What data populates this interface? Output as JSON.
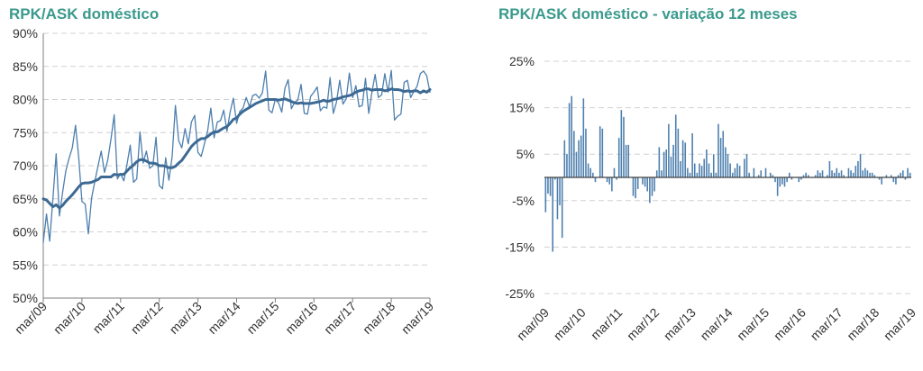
{
  "colors": {
    "title": "#3a9a8c",
    "series": "#4d7fae",
    "trend": "#3d6a94",
    "grid": "#d0d0d0",
    "axis": "#7f7f7f",
    "text": "#333333"
  },
  "chart_data": [
    {
      "type": "line",
      "title": "RPK/ASK doméstico",
      "ylim": [
        0.5,
        0.9
      ],
      "yticks": [
        0.5,
        0.55,
        0.6,
        0.65,
        0.7,
        0.75,
        0.8,
        0.85,
        0.9
      ],
      "ytick_labels": [
        "50%",
        "55%",
        "60%",
        "65%",
        "70%",
        "75%",
        "80%",
        "85%",
        "90%"
      ],
      "xticks": [
        "mar/09",
        "mar/10",
        "mar/11",
        "mar/12",
        "mar/13",
        "mar/14",
        "mar/15",
        "mar/16",
        "mar/17",
        "mar/18",
        "mar/19"
      ],
      "grid": true,
      "legend": "none",
      "series": [
        {
          "role": "monthly",
          "values": [
            0.584,
            0.627,
            0.586,
            0.65,
            0.718,
            0.624,
            0.66,
            0.692,
            0.711,
            0.727,
            0.761,
            0.713,
            0.646,
            0.642,
            0.597,
            0.651,
            0.676,
            0.7,
            0.722,
            0.69,
            0.708,
            0.74,
            0.777,
            0.68,
            0.688,
            0.677,
            0.702,
            0.731,
            0.675,
            0.68,
            0.751,
            0.704,
            0.722,
            0.696,
            0.7,
            0.743,
            0.67,
            0.665,
            0.712,
            0.678,
            0.714,
            0.791,
            0.738,
            0.727,
            0.756,
            0.733,
            0.766,
            0.776,
            0.72,
            0.714,
            0.733,
            0.752,
            0.787,
            0.742,
            0.766,
            0.768,
            0.784,
            0.752,
            0.781,
            0.802,
            0.764,
            0.782,
            0.787,
            0.803,
            0.789,
            0.806,
            0.808,
            0.802,
            0.81,
            0.843,
            0.784,
            0.78,
            0.8,
            0.795,
            0.781,
            0.817,
            0.83,
            0.786,
            0.796,
            0.799,
            0.823,
            0.779,
            0.778,
            0.805,
            0.811,
            0.819,
            0.783,
            0.789,
            0.787,
            0.833,
            0.779,
            0.796,
            0.829,
            0.793,
            0.801,
            0.84,
            0.803,
            0.821,
            0.789,
            0.791,
            0.832,
            0.779,
            0.811,
            0.838,
            0.803,
            0.807,
            0.839,
            0.811,
            0.844,
            0.769,
            0.775,
            0.778,
            0.826,
            0.829,
            0.803,
            0.812,
            0.82,
            0.839,
            0.843,
            0.836,
            0.811
          ],
          "x_start": "mar/09",
          "x_end": "mar/19"
        },
        {
          "role": "trend",
          "values": [
            0.65,
            0.648,
            0.643,
            0.638,
            0.641,
            0.636,
            0.64,
            0.646,
            0.651,
            0.656,
            0.662,
            0.668,
            0.673,
            0.674,
            0.674,
            0.675,
            0.677,
            0.679,
            0.683,
            0.683,
            0.683,
            0.683,
            0.687,
            0.686,
            0.687,
            0.687,
            0.692,
            0.697,
            0.701,
            0.706,
            0.709,
            0.709,
            0.707,
            0.704,
            0.704,
            0.703,
            0.7,
            0.7,
            0.699,
            0.697,
            0.697,
            0.699,
            0.704,
            0.708,
            0.715,
            0.722,
            0.729,
            0.734,
            0.738,
            0.741,
            0.741,
            0.744,
            0.748,
            0.751,
            0.751,
            0.754,
            0.757,
            0.759,
            0.764,
            0.77,
            0.772,
            0.778,
            0.782,
            0.785,
            0.788,
            0.791,
            0.794,
            0.796,
            0.798,
            0.8,
            0.8,
            0.8,
            0.8,
            0.799,
            0.8,
            0.801,
            0.799,
            0.797,
            0.795,
            0.794,
            0.795,
            0.794,
            0.794,
            0.794,
            0.795,
            0.796,
            0.797,
            0.799,
            0.797,
            0.798,
            0.8,
            0.801,
            0.802,
            0.804,
            0.805,
            0.806,
            0.808,
            0.811,
            0.813,
            0.814,
            0.816,
            0.816,
            0.814,
            0.815,
            0.815,
            0.815,
            0.813,
            0.814,
            0.816,
            0.815,
            0.815,
            0.814,
            0.812,
            0.813,
            0.812,
            0.813,
            0.813,
            0.81,
            0.813,
            0.811,
            0.815
          ],
          "x_start": "mar/09",
          "x_end": "mar/19"
        }
      ]
    },
    {
      "type": "bar",
      "title": "RPK/ASK doméstico - variação  12 meses",
      "ylim": [
        -0.25,
        0.25
      ],
      "yticks": [
        -0.25,
        -0.15,
        -0.05,
        0.05,
        0.15,
        0.25
      ],
      "ytick_labels": [
        "-25%",
        "-15%",
        "-5%",
        "5%",
        "15%",
        "25%"
      ],
      "xticks": [
        "mar/09",
        "mar/10",
        "mar/11",
        "mar/12",
        "mar/13",
        "mar/14",
        "mar/15",
        "mar/16",
        "mar/17",
        "mar/18",
        "mar/19"
      ],
      "grid": true,
      "legend": "none",
      "values": [
        -0.075,
        -0.035,
        -0.04,
        -0.16,
        -0.005,
        -0.09,
        -0.06,
        -0.13,
        0.08,
        0.05,
        0.16,
        0.175,
        0.1,
        0.055,
        0.08,
        0.09,
        0.17,
        0.105,
        0.03,
        0.02,
        0.01,
        -0.01,
        0.0,
        0.11,
        0.105,
        0.0,
        -0.01,
        -0.015,
        -0.03,
        0.02,
        -0.005,
        0.085,
        0.145,
        0.13,
        0.07,
        0.07,
        0.0,
        -0.04,
        -0.045,
        -0.025,
        0.0,
        -0.015,
        -0.02,
        -0.03,
        -0.055,
        -0.04,
        -0.03,
        0.015,
        0.065,
        0.015,
        0.055,
        0.06,
        0.115,
        0.045,
        0.07,
        0.135,
        0.105,
        0.035,
        0.08,
        0.075,
        0.02,
        0.01,
        0.095,
        0.03,
        0.01,
        0.03,
        0.025,
        0.04,
        0.06,
        0.03,
        0.01,
        0.05,
        0.01,
        0.115,
        0.085,
        0.1,
        0.065,
        0.05,
        0.03,
        0.01,
        0.02,
        0.03,
        0.025,
        0.0,
        0.04,
        0.05,
        0.01,
        0.0,
        0.02,
        0.0,
        0.005,
        0.015,
        0.0,
        0.02,
        0.0,
        0.01,
        0.005,
        -0.01,
        -0.04,
        -0.02,
        -0.015,
        -0.02,
        -0.01,
        0.01,
        -0.005,
        0.0,
        0.0,
        -0.01,
        -0.005,
        0.005,
        0.01,
        0.005,
        0.0,
        0.0,
        0.005,
        0.015,
        0.01,
        0.015,
        0.0,
        0.005,
        0.035,
        0.015,
        0.01,
        0.02,
        0.01,
        0.015,
        0.005,
        0.0,
        0.02,
        0.015,
        0.01,
        0.025,
        0.035,
        0.05,
        0.015,
        0.02,
        0.015,
        0.01,
        0.01,
        0.005,
        0.0,
        -0.005,
        -0.015,
        0.0,
        0.005,
        0.0,
        0.005,
        -0.01,
        -0.015,
        0.005,
        0.01,
        0.015,
        -0.005,
        0.02,
        0.01
      ],
      "x_start": "mar/09",
      "x_end": "mar/19"
    }
  ]
}
